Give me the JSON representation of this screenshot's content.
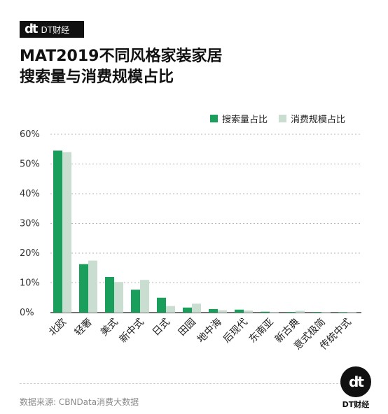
{
  "brand": {
    "mark": "dt",
    "name": "DT财经"
  },
  "title_lines": [
    "MAT2019不同风格家装家居",
    "搜索量与消费规模占比"
  ],
  "colors": {
    "search": "#1a9e5c",
    "consumption": "#c9ddd1",
    "grid": "#b5b5b5"
  },
  "chart_data": {
    "type": "bar",
    "categories": [
      "北欧",
      "轻奢",
      "美式",
      "新中式",
      "日式",
      "田园",
      "地中海",
      "后现代",
      "东南亚",
      "新古典",
      "意式极简",
      "传统中式"
    ],
    "series": [
      {
        "name": "搜索量占比",
        "values": [
          54.5,
          16.3,
          12.0,
          7.7,
          5.0,
          1.7,
          1.2,
          1.0,
          0.3,
          0.2,
          0.2,
          0.1
        ]
      },
      {
        "name": "消费规模占比",
        "values": [
          54.0,
          17.5,
          10.3,
          11.0,
          2.2,
          3.0,
          0.8,
          0.7,
          0.1,
          0.6,
          0.1,
          0.1
        ]
      }
    ],
    "yticks": [
      "0%",
      "10%",
      "20%",
      "30%",
      "40%",
      "50%",
      "60%"
    ],
    "ylim": [
      0,
      60
    ],
    "legend_position": "top-right",
    "grid": true
  },
  "source": "数据来源: CBNData消费大数据",
  "badge": {
    "mark": "dt",
    "name": "DT财经"
  }
}
